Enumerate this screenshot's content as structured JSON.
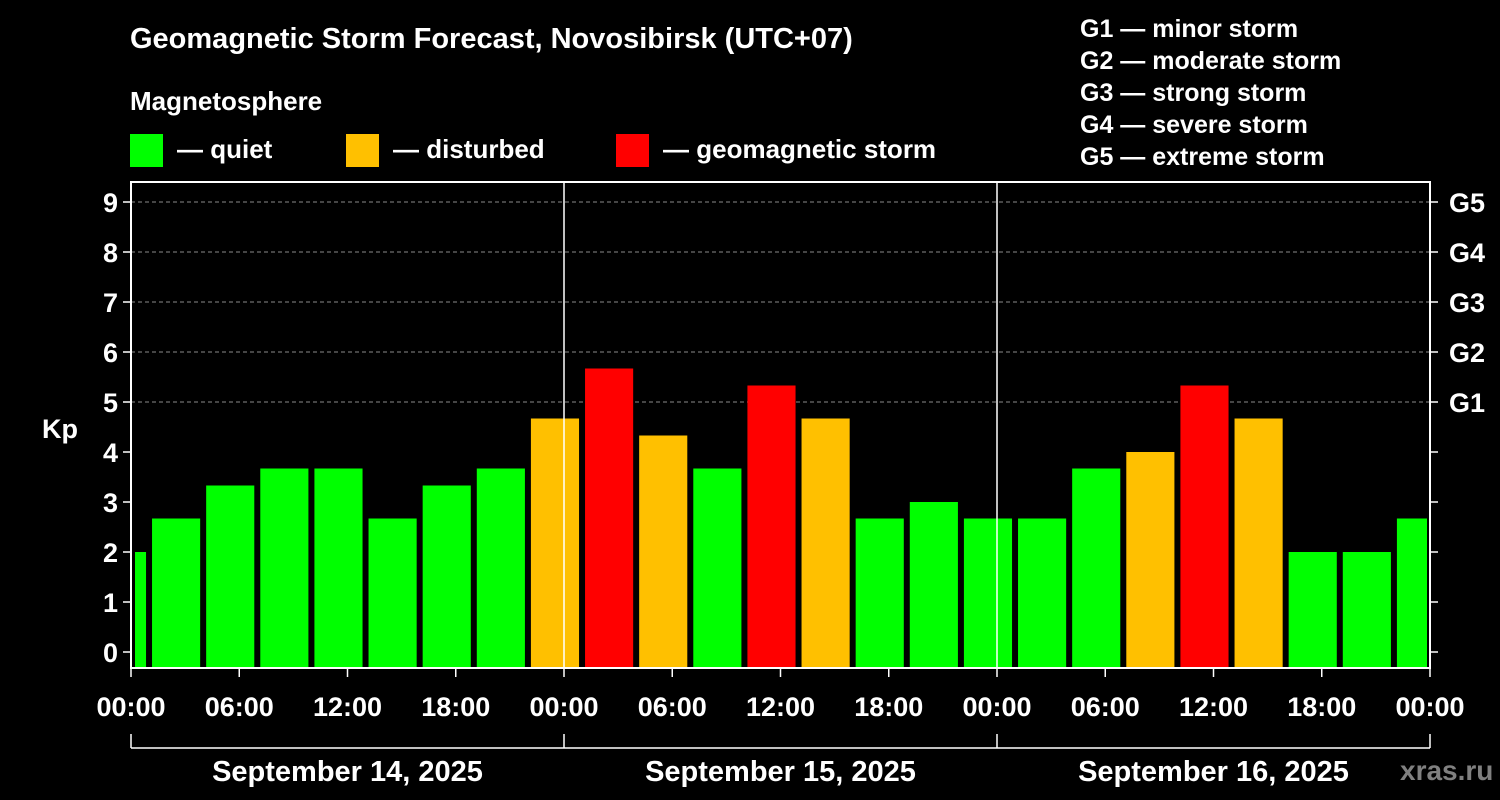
{
  "title": "Geomagnetic Storm Forecast, Novosibirsk (UTC+07)",
  "subtitle": "Magnetosphere",
  "legend": [
    {
      "label": "— quiet",
      "color": "#00ff00"
    },
    {
      "label": "— disturbed",
      "color": "#ffc000"
    },
    {
      "label": "— geomagnetic storm",
      "color": "#ff0000"
    }
  ],
  "storm_scale": [
    "G1 — minor storm",
    "G2 — moderate storm",
    "G3 — strong storm",
    "G4 — severe storm",
    "G5 — extreme storm"
  ],
  "watermark": "xras.ru",
  "chart_data": {
    "type": "bar",
    "ylabel": "Kp",
    "ylim": [
      0,
      9
    ],
    "yticks": [
      "0",
      "1",
      "2",
      "3",
      "4",
      "5",
      "6",
      "7",
      "8",
      "9"
    ],
    "right_ticks": [
      {
        "kp": 5,
        "label": "G1"
      },
      {
        "kp": 6,
        "label": "G2"
      },
      {
        "kp": 7,
        "label": "G3"
      },
      {
        "kp": 8,
        "label": "G4"
      },
      {
        "kp": 9,
        "label": "G5"
      }
    ],
    "grid": true,
    "x_tick_labels": [
      "00:00",
      "06:00",
      "12:00",
      "18:00",
      "00:00",
      "06:00",
      "12:00",
      "18:00",
      "00:00",
      "06:00",
      "12:00",
      "18:00",
      "00:00"
    ],
    "dates": [
      "September 14, 2025",
      "September 15, 2025",
      "September 16, 2025"
    ],
    "time_range_hours": [
      0,
      72
    ],
    "bars": [
      {
        "start": 0,
        "end": 1,
        "kp": 2.0,
        "level": "quiet"
      },
      {
        "start": 1,
        "end": 4,
        "kp": 2.67,
        "level": "quiet"
      },
      {
        "start": 4,
        "end": 7,
        "kp": 3.33,
        "level": "quiet"
      },
      {
        "start": 7,
        "end": 10,
        "kp": 3.67,
        "level": "quiet"
      },
      {
        "start": 10,
        "end": 13,
        "kp": 3.67,
        "level": "quiet"
      },
      {
        "start": 13,
        "end": 16,
        "kp": 2.67,
        "level": "quiet"
      },
      {
        "start": 16,
        "end": 19,
        "kp": 3.33,
        "level": "quiet"
      },
      {
        "start": 19,
        "end": 22,
        "kp": 3.67,
        "level": "quiet"
      },
      {
        "start": 22,
        "end": 25,
        "kp": 4.67,
        "level": "disturbed"
      },
      {
        "start": 25,
        "end": 28,
        "kp": 5.67,
        "level": "storm"
      },
      {
        "start": 28,
        "end": 31,
        "kp": 4.33,
        "level": "disturbed"
      },
      {
        "start": 31,
        "end": 34,
        "kp": 3.67,
        "level": "quiet"
      },
      {
        "start": 34,
        "end": 37,
        "kp": 5.33,
        "level": "storm"
      },
      {
        "start": 37,
        "end": 40,
        "kp": 4.67,
        "level": "disturbed"
      },
      {
        "start": 40,
        "end": 43,
        "kp": 2.67,
        "level": "quiet"
      },
      {
        "start": 43,
        "end": 46,
        "kp": 3.0,
        "level": "quiet"
      },
      {
        "start": 46,
        "end": 49,
        "kp": 2.67,
        "level": "quiet"
      },
      {
        "start": 49,
        "end": 52,
        "kp": 2.67,
        "level": "quiet"
      },
      {
        "start": 52,
        "end": 55,
        "kp": 3.67,
        "level": "quiet"
      },
      {
        "start": 55,
        "end": 58,
        "kp": 4.0,
        "level": "disturbed"
      },
      {
        "start": 58,
        "end": 61,
        "kp": 5.33,
        "level": "storm"
      },
      {
        "start": 61,
        "end": 64,
        "kp": 4.67,
        "level": "disturbed"
      },
      {
        "start": 64,
        "end": 67,
        "kp": 2.0,
        "level": "quiet"
      },
      {
        "start": 67,
        "end": 70,
        "kp": 2.0,
        "level": "quiet"
      },
      {
        "start": 70,
        "end": 72,
        "kp": 2.67,
        "level": "quiet"
      }
    ],
    "level_colors": {
      "quiet": "#00ff00",
      "disturbed": "#ffc000",
      "storm": "#ff0000"
    }
  }
}
